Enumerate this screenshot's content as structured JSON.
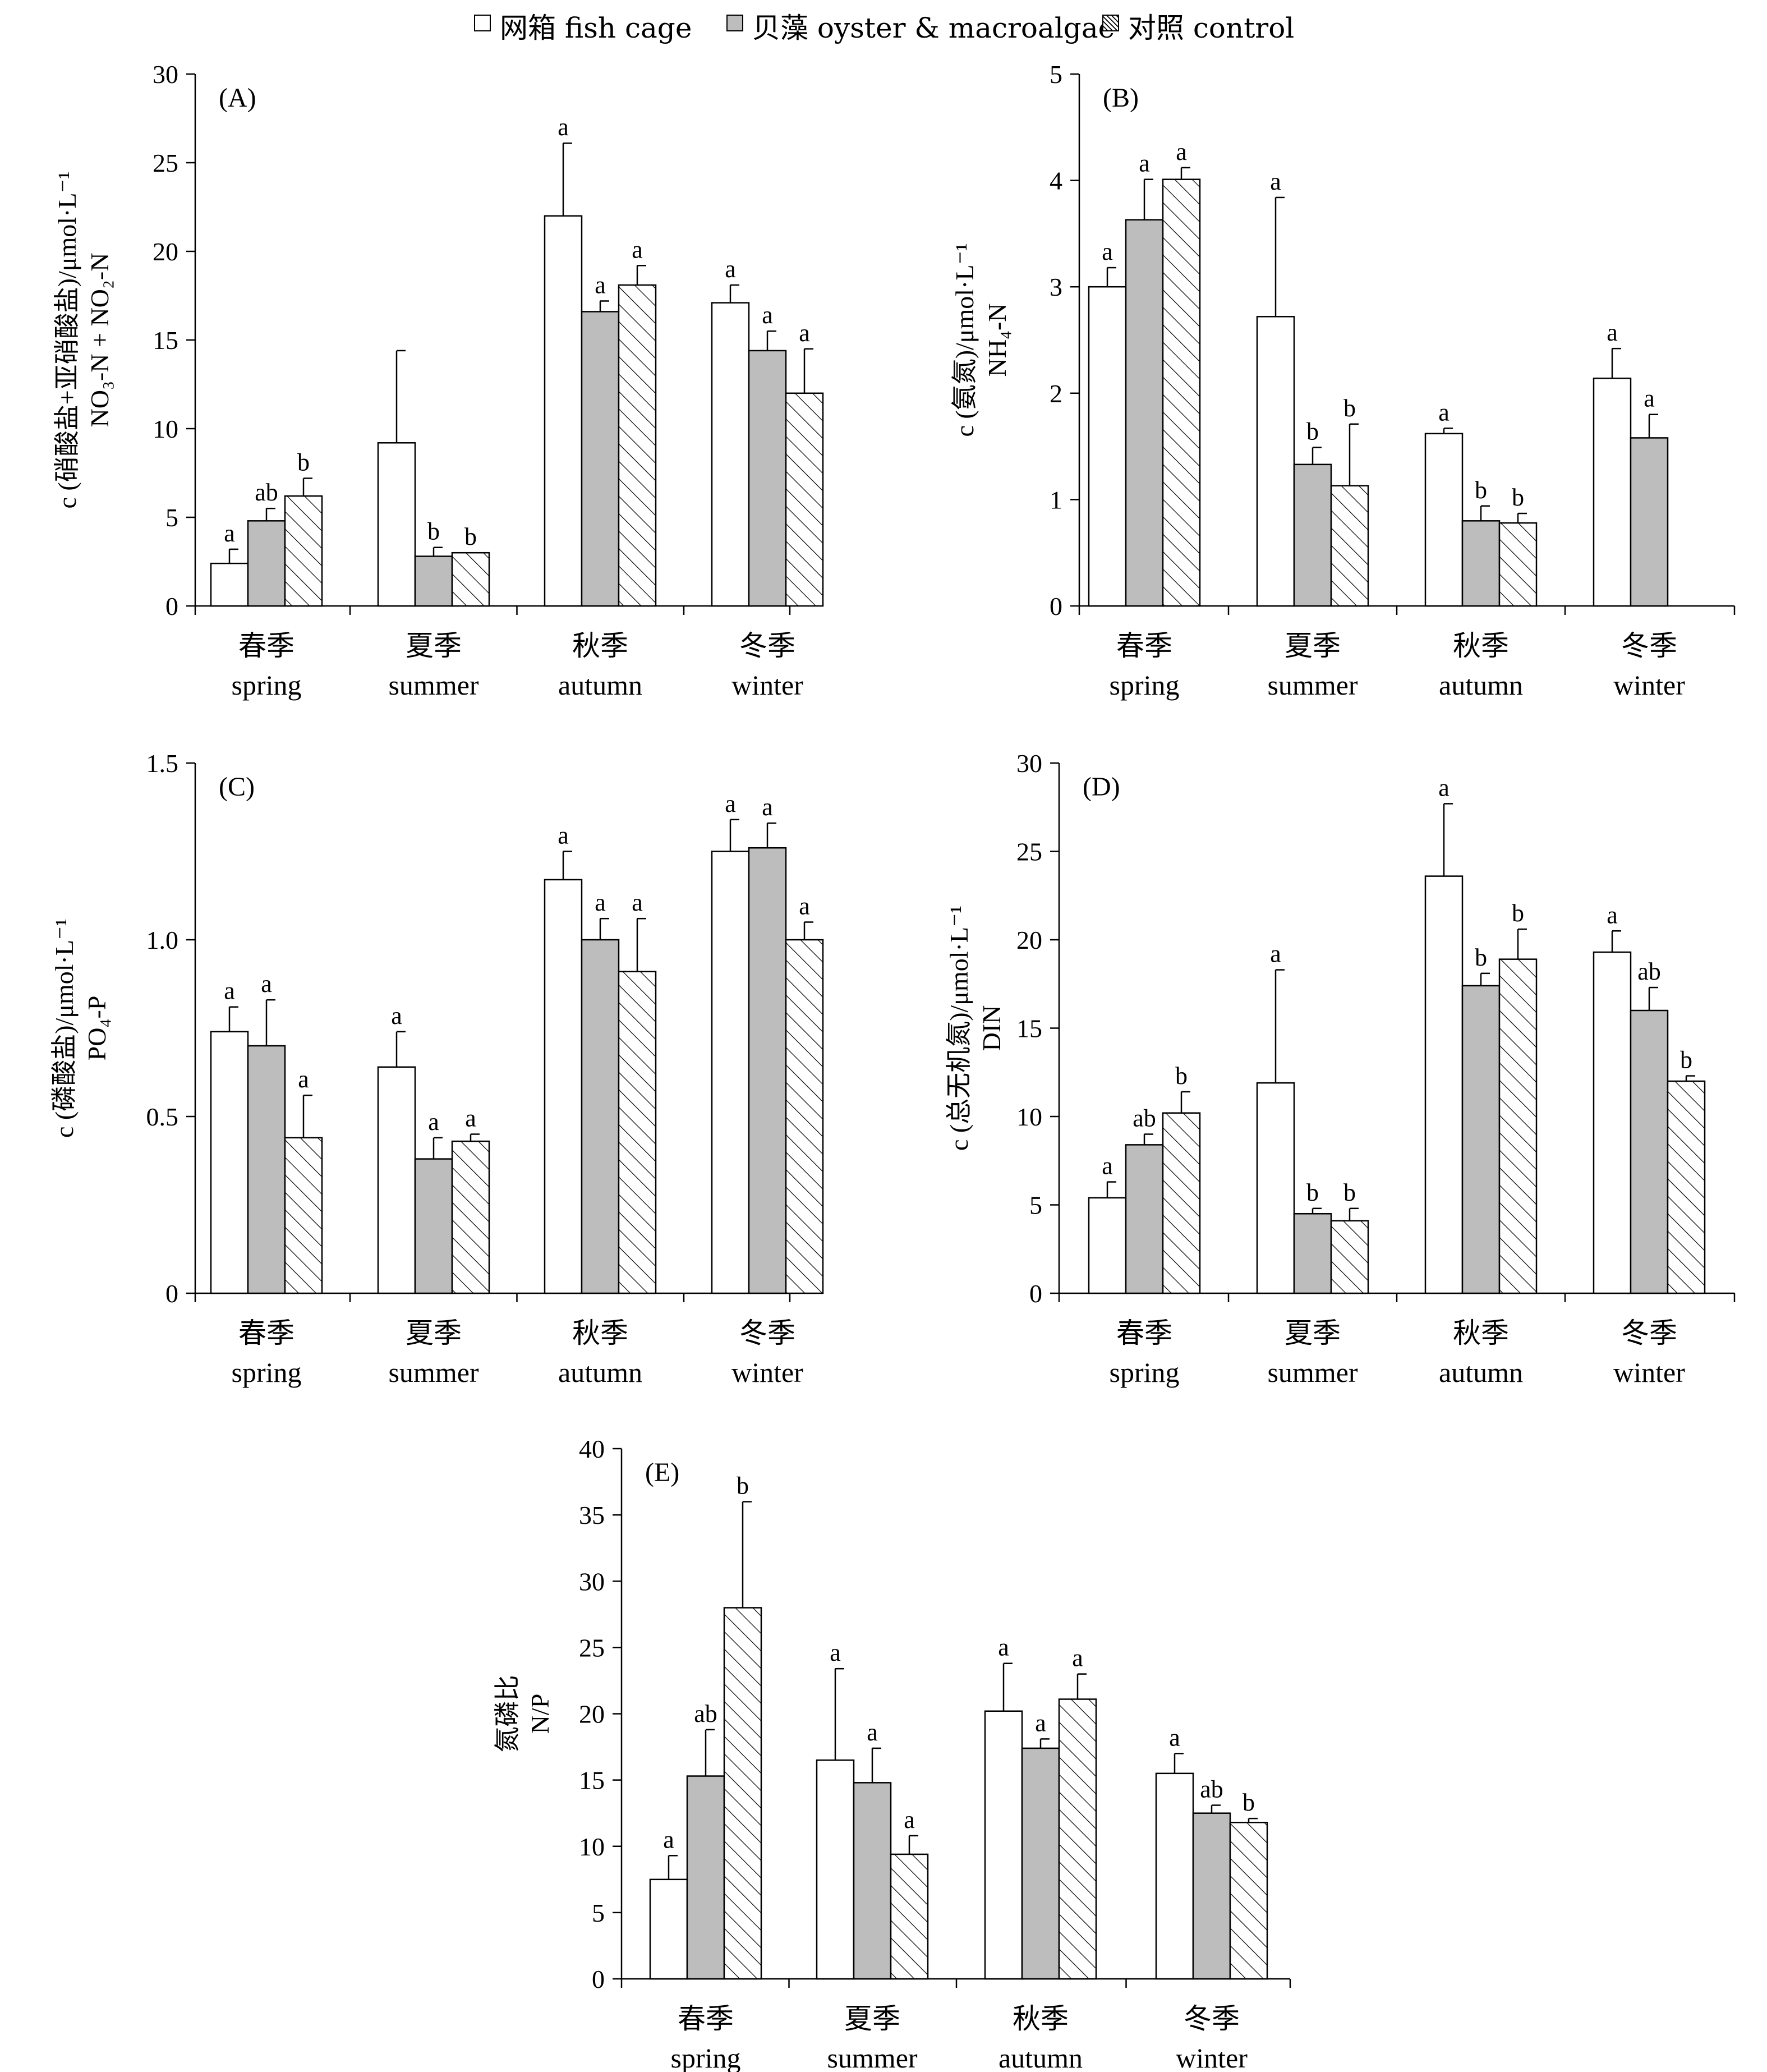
{
  "legend": [
    {
      "label": "网箱 fish cage",
      "fill": "white"
    },
    {
      "label": "贝藻 oyster & macroalgae",
      "fill": "gray"
    },
    {
      "label": "对照 control",
      "fill": "hatch"
    }
  ],
  "colors": {
    "white_bar": "#ffffff",
    "gray_bar": "#bdbdbd",
    "line": "#000000"
  },
  "chart_data": [
    {
      "id": "A",
      "type": "bar",
      "panel_label": "(A)",
      "categories": [
        {
          "cn": "春季",
          "en": "spring"
        },
        {
          "cn": "夏季",
          "en": "summer"
        },
        {
          "cn": "秋季",
          "en": "autumn"
        },
        {
          "cn": "冬季",
          "en": "winter"
        }
      ],
      "ylabel_cn": "c (硝酸盐+亚硝酸盐)/μmol·L⁻¹",
      "ylabel_en": "NO₃-N + NO₂-N",
      "ylim": [
        0,
        30
      ],
      "yticks": [
        0,
        5,
        10,
        15,
        20,
        25,
        30
      ],
      "ytick_labels": [
        "0",
        "5",
        "10",
        "15",
        "20",
        "25",
        "30"
      ],
      "series": [
        {
          "name": "网箱 fish cage",
          "values": [
            2.4,
            9.2,
            22.0,
            17.1
          ],
          "errors": [
            0.8,
            5.2,
            4.1,
            1.0
          ],
          "letters": [
            "a",
            "",
            "a",
            "a"
          ]
        },
        {
          "name": "贝藻 oyster & macroalgae",
          "values": [
            4.8,
            2.8,
            16.6,
            14.4
          ],
          "errors": [
            0.7,
            0.5,
            0.6,
            1.1
          ],
          "letters": [
            "ab",
            "b",
            "a",
            "a"
          ]
        },
        {
          "name": "对照 control",
          "values": [
            6.2,
            3.0,
            18.1,
            12.0
          ],
          "errors": [
            1.0,
            0.0,
            1.1,
            2.5
          ],
          "letters": [
            "b",
            "b",
            "a",
            "a"
          ]
        }
      ]
    },
    {
      "id": "B",
      "type": "bar",
      "panel_label": "(B)",
      "categories": [
        {
          "cn": "春季",
          "en": "spring"
        },
        {
          "cn": "夏季",
          "en": "summer"
        },
        {
          "cn": "秋季",
          "en": "autumn"
        },
        {
          "cn": "冬季",
          "en": "winter"
        }
      ],
      "ylabel_cn": "c (氨氮)/μmol·L⁻¹",
      "ylabel_en": "NH₄-N",
      "ylim": [
        0,
        5
      ],
      "yticks": [
        0,
        1,
        2,
        3,
        4,
        5
      ],
      "ytick_labels": [
        "0",
        "1",
        "2",
        "3",
        "4",
        "5"
      ],
      "series": [
        {
          "name": "网箱 fish cage",
          "values": [
            3.0,
            2.72,
            1.62,
            2.14
          ],
          "errors": [
            0.18,
            1.12,
            0.05,
            0.28
          ],
          "letters": [
            "a",
            "a",
            "a",
            "a"
          ]
        },
        {
          "name": "贝藻 oyster & macroalgae",
          "values": [
            3.63,
            1.33,
            0.8,
            1.58
          ],
          "errors": [
            0.38,
            0.16,
            0.14,
            0.22
          ],
          "letters": [
            "a",
            "b",
            "b",
            "a"
          ]
        },
        {
          "name": "对照 control",
          "values": [
            4.01,
            1.13,
            0.78,
            null
          ],
          "errors": [
            0.11,
            0.58,
            0.09,
            null
          ],
          "letters": [
            "a",
            "b",
            "b",
            ""
          ]
        }
      ]
    },
    {
      "id": "C",
      "type": "bar",
      "panel_label": "(C)",
      "categories": [
        {
          "cn": "春季",
          "en": "spring"
        },
        {
          "cn": "夏季",
          "en": "summer"
        },
        {
          "cn": "秋季",
          "en": "autumn"
        },
        {
          "cn": "冬季",
          "en": "winter"
        }
      ],
      "ylabel_cn": "c (磷酸盐)/μmol·L⁻¹",
      "ylabel_en": "PO₄-P",
      "ylim": [
        0,
        1.5
      ],
      "yticks": [
        0,
        0.5,
        1.0,
        1.5
      ],
      "ytick_labels": [
        "0",
        "0.5",
        "1.0",
        "1.5"
      ],
      "series": [
        {
          "name": "网箱 fish cage",
          "values": [
            0.74,
            0.64,
            1.17,
            1.25
          ],
          "errors": [
            0.07,
            0.1,
            0.08,
            0.09
          ],
          "letters": [
            "a",
            "a",
            "a",
            "a"
          ]
        },
        {
          "name": "贝藻 oyster & macroalgae",
          "values": [
            0.7,
            0.38,
            1.0,
            1.26
          ],
          "errors": [
            0.13,
            0.06,
            0.06,
            0.07
          ],
          "letters": [
            "a",
            "a",
            "a",
            "a"
          ]
        },
        {
          "name": "对照 control",
          "values": [
            0.44,
            0.43,
            0.91,
            1.0
          ],
          "errors": [
            0.12,
            0.02,
            0.15,
            0.05
          ],
          "letters": [
            "a",
            "a",
            "a",
            "a"
          ]
        }
      ]
    },
    {
      "id": "D",
      "type": "bar",
      "panel_label": "(D)",
      "categories": [
        {
          "cn": "春季",
          "en": "spring"
        },
        {
          "cn": "夏季",
          "en": "summer"
        },
        {
          "cn": "秋季",
          "en": "autumn"
        },
        {
          "cn": "冬季",
          "en": "winter"
        }
      ],
      "ylabel_cn": "c (总无机氮)/μmol·L⁻¹",
      "ylabel_en": "DIN",
      "ylim": [
        0,
        30
      ],
      "yticks": [
        0,
        5,
        10,
        15,
        20,
        25,
        30
      ],
      "ytick_labels": [
        "0",
        "5",
        "10",
        "15",
        "20",
        "25",
        "30"
      ],
      "series": [
        {
          "name": "网箱 fish cage",
          "values": [
            5.4,
            11.9,
            23.6,
            19.3
          ],
          "errors": [
            0.9,
            6.4,
            4.1,
            1.2
          ],
          "letters": [
            "a",
            "a",
            "a",
            "a"
          ]
        },
        {
          "name": "贝藻 oyster & macroalgae",
          "values": [
            8.4,
            4.5,
            17.4,
            16.0
          ],
          "errors": [
            0.6,
            0.3,
            0.7,
            1.3
          ],
          "letters": [
            "ab",
            "b",
            "b",
            "ab"
          ]
        },
        {
          "name": "对照 control",
          "values": [
            10.2,
            4.1,
            18.9,
            12.0
          ],
          "errors": [
            1.2,
            0.7,
            1.7,
            0.3
          ],
          "letters": [
            "b",
            "b",
            "b",
            "b"
          ]
        }
      ]
    },
    {
      "id": "E",
      "type": "bar",
      "panel_label": "(E)",
      "categories": [
        {
          "cn": "春季",
          "en": "spring"
        },
        {
          "cn": "夏季",
          "en": "summer"
        },
        {
          "cn": "秋季",
          "en": "autumn"
        },
        {
          "cn": "冬季",
          "en": "winter"
        }
      ],
      "ylabel_cn": "氮磷比",
      "ylabel_en": "N/P",
      "ylim": [
        0,
        40
      ],
      "yticks": [
        0,
        5,
        10,
        15,
        20,
        25,
        30,
        35,
        40
      ],
      "ytick_labels": [
        "0",
        "5",
        "10",
        "15",
        "20",
        "25",
        "30",
        "35",
        "40"
      ],
      "series": [
        {
          "name": "网箱 fish cage",
          "values": [
            7.5,
            16.5,
            20.2,
            15.5
          ],
          "errors": [
            1.8,
            6.9,
            3.6,
            1.5
          ],
          "letters": [
            "a",
            "a",
            "a",
            "a"
          ]
        },
        {
          "name": "贝藻 oyster & macroalgae",
          "values": [
            15.3,
            14.8,
            17.4,
            12.5
          ],
          "errors": [
            3.5,
            2.6,
            0.7,
            0.6
          ],
          "letters": [
            "ab",
            "a",
            "a",
            "ab"
          ]
        },
        {
          "name": "对照 control",
          "values": [
            28.0,
            9.4,
            21.1,
            11.8
          ],
          "errors": [
            8.0,
            1.4,
            1.9,
            0.3
          ],
          "letters": [
            "b",
            "a",
            "a",
            "b"
          ]
        }
      ]
    }
  ]
}
